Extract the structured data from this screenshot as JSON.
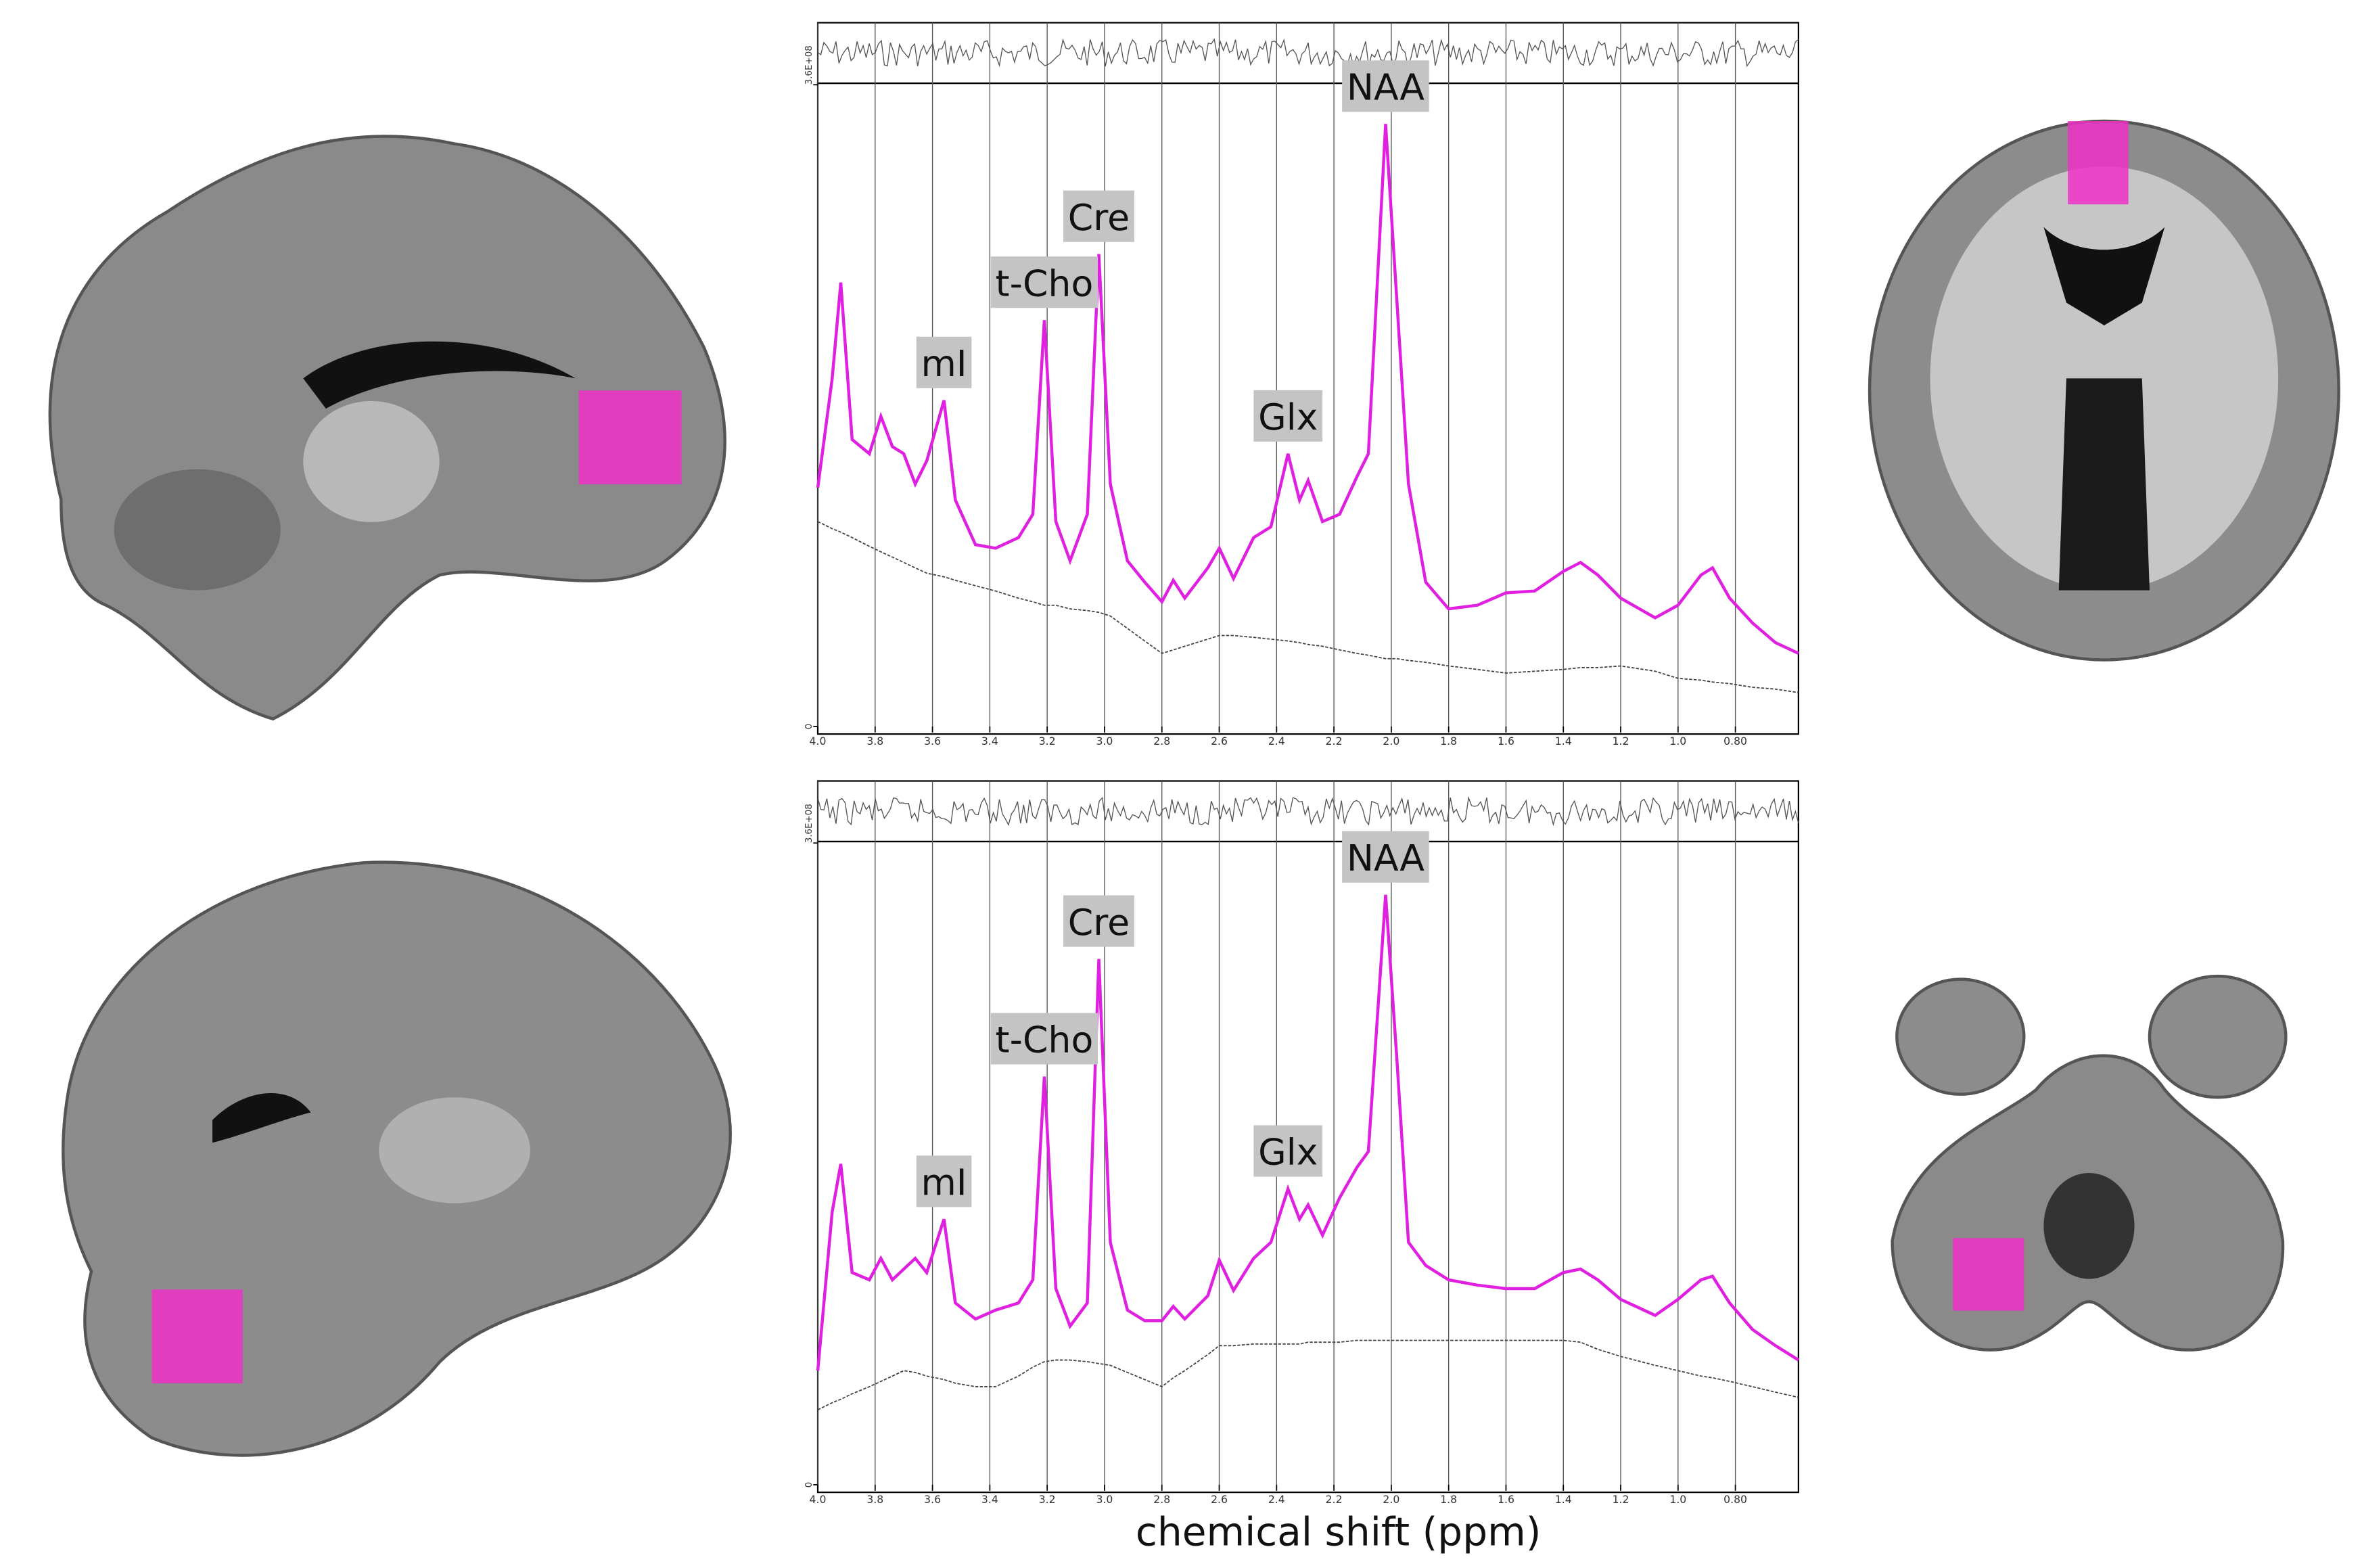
{
  "chart_data": [
    {
      "type": "line",
      "x": [
        4.0,
        3.95,
        3.92,
        3.88,
        3.82,
        3.78,
        3.74,
        3.7,
        3.66,
        3.62,
        3.56,
        3.52,
        3.45,
        3.38,
        3.3,
        3.25,
        3.21,
        3.17,
        3.12,
        3.06,
        3.02,
        2.98,
        2.92,
        2.86,
        2.8,
        2.76,
        2.72,
        2.64,
        2.6,
        2.55,
        2.48,
        2.42,
        2.36,
        2.32,
        2.29,
        2.24,
        2.18,
        2.12,
        2.08,
        2.02,
        1.98,
        1.94,
        1.88,
        1.8,
        1.7,
        1.6,
        1.5,
        1.4,
        1.34,
        1.28,
        1.2,
        1.08,
        1.0,
        0.92,
        0.88,
        0.82,
        0.74,
        0.66,
        0.58
      ],
      "series": [
        {
          "color": "#e020e0",
          "values": [
            134000000.0,
            195000000.0,
            249000000.0,
            161000000.0,
            153000000.0,
            174000000.0,
            157000000.0,
            153000000.0,
            136000000.0,
            149000000.0,
            183000000.0,
            127000000.0,
            102000000.0,
            100000000.0,
            106000000.0,
            119000000.0,
            228000000.0,
            115000000.0,
            93000000.0,
            119000000.0,
            265000000.0,
            136000000.0,
            93000000.0,
            81000000.0,
            70000000.0,
            82000000.0,
            72000000.0,
            89000000.0,
            100000000.0,
            83000000.0,
            106000000.0,
            112000000.0,
            153000000.0,
            127000000.0,
            138000000.0,
            115000000.0,
            119000000.0,
            140000000.0,
            153000000.0,
            338000000.0,
            238000000.0,
            136000000.0,
            81000000.0,
            66000000.0,
            68000000.0,
            75000000.0,
            76000000.0,
            87000000.0,
            92000000.0,
            85000000.0,
            72000000.0,
            61000000.0,
            68000000.0,
            85000000.0,
            89000000.0,
            72000000.0,
            58000000.0,
            47000000.0,
            41000000.0
          ]
        },
        {
          "color": "#444444",
          "values": [
            115000000.0,
            111000000.0,
            109000000.0,
            106000000.0,
            101000000.0,
            98000000.0,
            95000000.0,
            92000000.0,
            89000000.0,
            86000000.0,
            84000000.0,
            82000000.0,
            79000000.0,
            76000000.0,
            72000000.0,
            70000000.0,
            68000000.0,
            68000000.0,
            66000000.0,
            65000000.0,
            64000000.0,
            62000000.0,
            55000000.0,
            48000000.0,
            41000000.0,
            43000000.0,
            45000000.0,
            49000000.0,
            51000000.0,
            51000000.0,
            50000000.0,
            49000000.0,
            48000000.0,
            47000000.0,
            46000000.0,
            45000000.0,
            43000000.0,
            41000000.0,
            40000000.0,
            38000000.0,
            38000000.0,
            37000000.0,
            36000000.0,
            34000000.0,
            32000000.0,
            30000000.0,
            31000000.0,
            32000000.0,
            33000000.0,
            33000000.0,
            34000000.0,
            31000000.0,
            27000000.0,
            26000000.0,
            25000000.0,
            24000000.0,
            22000000.0,
            21000000.0,
            19000000.0
          ]
        }
      ],
      "annotations": [
        {
          "text": "mI",
          "x": 3.56
        },
        {
          "text": "t-Cho",
          "x": 3.21
        },
        {
          "text": "Cre",
          "x": 3.02
        },
        {
          "text": "Glx",
          "x": 2.36
        },
        {
          "text": "NAA",
          "x": 2.02
        }
      ],
      "xlim": [
        4.0,
        0.58
      ],
      "xticks": [
        {
          "value": 4.0,
          "label": "4.0"
        },
        3.8,
        3.6,
        3.4,
        3.2,
        {
          "value": 3.0,
          "label": "3.0"
        },
        2.8,
        2.6,
        2.4,
        2.2,
        {
          "value": 2.0,
          "label": "2.0"
        },
        1.8,
        1.6,
        1.4,
        1.2,
        {
          "value": 1.0,
          "label": "1.0"
        },
        {
          "value": 0.8,
          "label": "0.80"
        }
      ],
      "ylim": [
        0,
        360000000
      ],
      "yticks": [
        0,
        {
          "value": 360000000,
          "label": "3.6E+08"
        }
      ],
      "grid": true
    },
    {
      "type": "line",
      "x": [
        4.0,
        3.95,
        3.92,
        3.88,
        3.82,
        3.78,
        3.74,
        3.7,
        3.66,
        3.62,
        3.56,
        3.52,
        3.45,
        3.38,
        3.3,
        3.25,
        3.21,
        3.17,
        3.12,
        3.06,
        3.02,
        2.98,
        2.92,
        2.86,
        2.8,
        2.76,
        2.72,
        2.64,
        2.6,
        2.55,
        2.48,
        2.42,
        2.36,
        2.32,
        2.29,
        2.24,
        2.18,
        2.12,
        2.08,
        2.02,
        1.98,
        1.94,
        1.88,
        1.8,
        1.7,
        1.6,
        1.5,
        1.4,
        1.34,
        1.28,
        1.2,
        1.08,
        1.0,
        0.92,
        0.88,
        0.82,
        0.74,
        0.66,
        0.58
      ],
      "series": [
        {
          "color": "#e020e0",
          "values": [
            64000000.0,
            153000000.0,
            180000000.0,
            119000000.0,
            115000000.0,
            127000000.0,
            115000000.0,
            121000000.0,
            127000000.0,
            119000000.0,
            149000000.0,
            102000000.0,
            93000000.0,
            98000000.0,
            102000000.0,
            115000000.0,
            229000000.0,
            110000000.0,
            89000000.0,
            102000000.0,
            295000000.0,
            136000000.0,
            98000000.0,
            92000000.0,
            92000000.0,
            100000000.0,
            93000000.0,
            106000000.0,
            126000000.0,
            109000000.0,
            127000000.0,
            136000000.0,
            166000000.0,
            149000000.0,
            157000000.0,
            140000000.0,
            161000000.0,
            178000000.0,
            187000000.0,
            331000000.0,
            238000000.0,
            136000000.0,
            123000000.0,
            115000000.0,
            112000000.0,
            110000000.0,
            110000000.0,
            119000000.0,
            121000000.0,
            115000000.0,
            104000000.0,
            95000000.0,
            104000000.0,
            115000000.0,
            117000000.0,
            102000000.0,
            87000000.0,
            78000000.0,
            70000000.0
          ]
        },
        {
          "color": "#444444",
          "values": [
            42000000.0,
            46000000.0,
            48000000.0,
            51000000.0,
            55000000.0,
            58000000.0,
            61000000.0,
            64000000.0,
            63000000.0,
            61000000.0,
            59000000.0,
            57000000.0,
            55000000.0,
            55000000.0,
            61000000.0,
            66000000.0,
            69000000.0,
            70000000.0,
            70000000.0,
            69000000.0,
            68000000.0,
            67000000.0,
            63000000.0,
            59000000.0,
            55000000.0,
            60000000.0,
            64000000.0,
            73000000.0,
            78000000.0,
            78000000.0,
            79000000.0,
            79000000.0,
            79000000.0,
            79000000.0,
            80000000.0,
            80000000.0,
            80000000.0,
            81000000.0,
            81000000.0,
            81000000.0,
            81000000.0,
            81000000.0,
            81000000.0,
            81000000.0,
            81000000.0,
            81000000.0,
            81000000.0,
            81000000.0,
            80000000.0,
            76000000.0,
            72000000.0,
            67000000.0,
            64000000.0,
            61000000.0,
            60000000.0,
            58000000.0,
            55000000.0,
            52000000.0,
            49000000.0
          ]
        }
      ],
      "annotations": [
        {
          "text": "mI",
          "x": 3.56
        },
        {
          "text": "t-Cho",
          "x": 3.21
        },
        {
          "text": "Cre",
          "x": 3.02
        },
        {
          "text": "Glx",
          "x": 2.36
        },
        {
          "text": "NAA",
          "x": 2.02
        }
      ],
      "xlim": [
        4.0,
        0.58
      ],
      "xticks": [
        {
          "value": 4.0,
          "label": "4.0"
        },
        3.8,
        3.6,
        3.4,
        3.2,
        {
          "value": 3.0,
          "label": "3.0"
        },
        2.8,
        2.6,
        2.4,
        2.2,
        {
          "value": 2.0,
          "label": "2.0"
        },
        1.8,
        1.6,
        1.4,
        1.2,
        {
          "value": 1.0,
          "label": "1.0"
        },
        {
          "value": 0.8,
          "label": "0.80"
        }
      ],
      "ylim": [
        0,
        360000000
      ],
      "yticks": [
        0,
        {
          "value": 360000000,
          "label": "3.6E+08"
        }
      ],
      "grid": true,
      "x_label": "chemical shift (ppm)"
    }
  ]
}
